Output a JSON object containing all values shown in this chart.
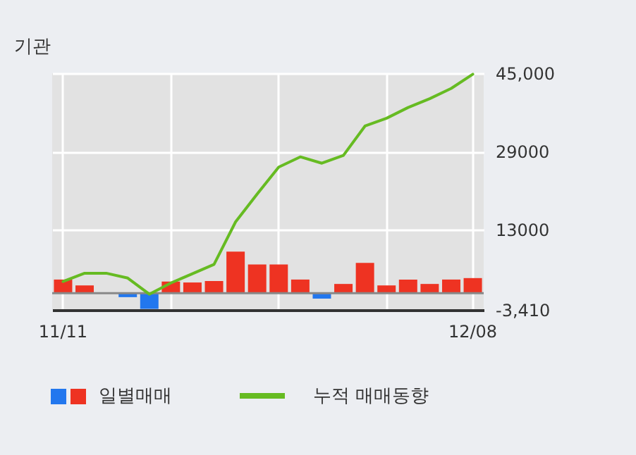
{
  "chart_data": {
    "type": "bar",
    "title": "기관",
    "categories": [
      "11/11",
      null,
      null,
      null,
      null,
      null,
      null,
      null,
      null,
      null,
      null,
      null,
      null,
      null,
      null,
      null,
      null,
      null,
      null,
      "12/08"
    ],
    "series": [
      {
        "name": "일별매매",
        "colors": [
          "#ee3322",
          "#ee3322",
          "#ee3322",
          "#2277ee",
          "#2277ee",
          "#ee3322",
          "#ee3322",
          "#ee3322",
          "#ee3322",
          "#ee3322",
          "#ee3322",
          "#ee3322",
          "#2277ee",
          "#ee3322",
          "#ee3322",
          "#ee3322",
          "#ee3322",
          "#ee3322",
          "#ee3322",
          "#ee3322"
        ],
        "values": [
          2800,
          1600,
          0,
          -800,
          -3200,
          2400,
          2200,
          2500,
          8500,
          5900,
          5900,
          2800,
          -1100,
          1900,
          6200,
          1600,
          2800,
          1900,
          2800,
          3100
        ]
      },
      {
        "name": "누적 매매동향",
        "type": "line",
        "color": "#66bb22",
        "values": [
          2400,
          4100,
          4100,
          3100,
          -200,
          2100,
          4000,
          5900,
          14600,
          20300,
          25800,
          27900,
          26600,
          28200,
          34200,
          35800,
          38000,
          39800,
          41900,
          44800
        ]
      }
    ],
    "ylim": [
      -3410,
      45000
    ],
    "yticks": [
      {
        "value": 45000,
        "label": "45,000"
      },
      29000,
      13000,
      {
        "value": -3410,
        "label": "-3,410"
      }
    ],
    "grid": true,
    "legend": "bottom"
  }
}
